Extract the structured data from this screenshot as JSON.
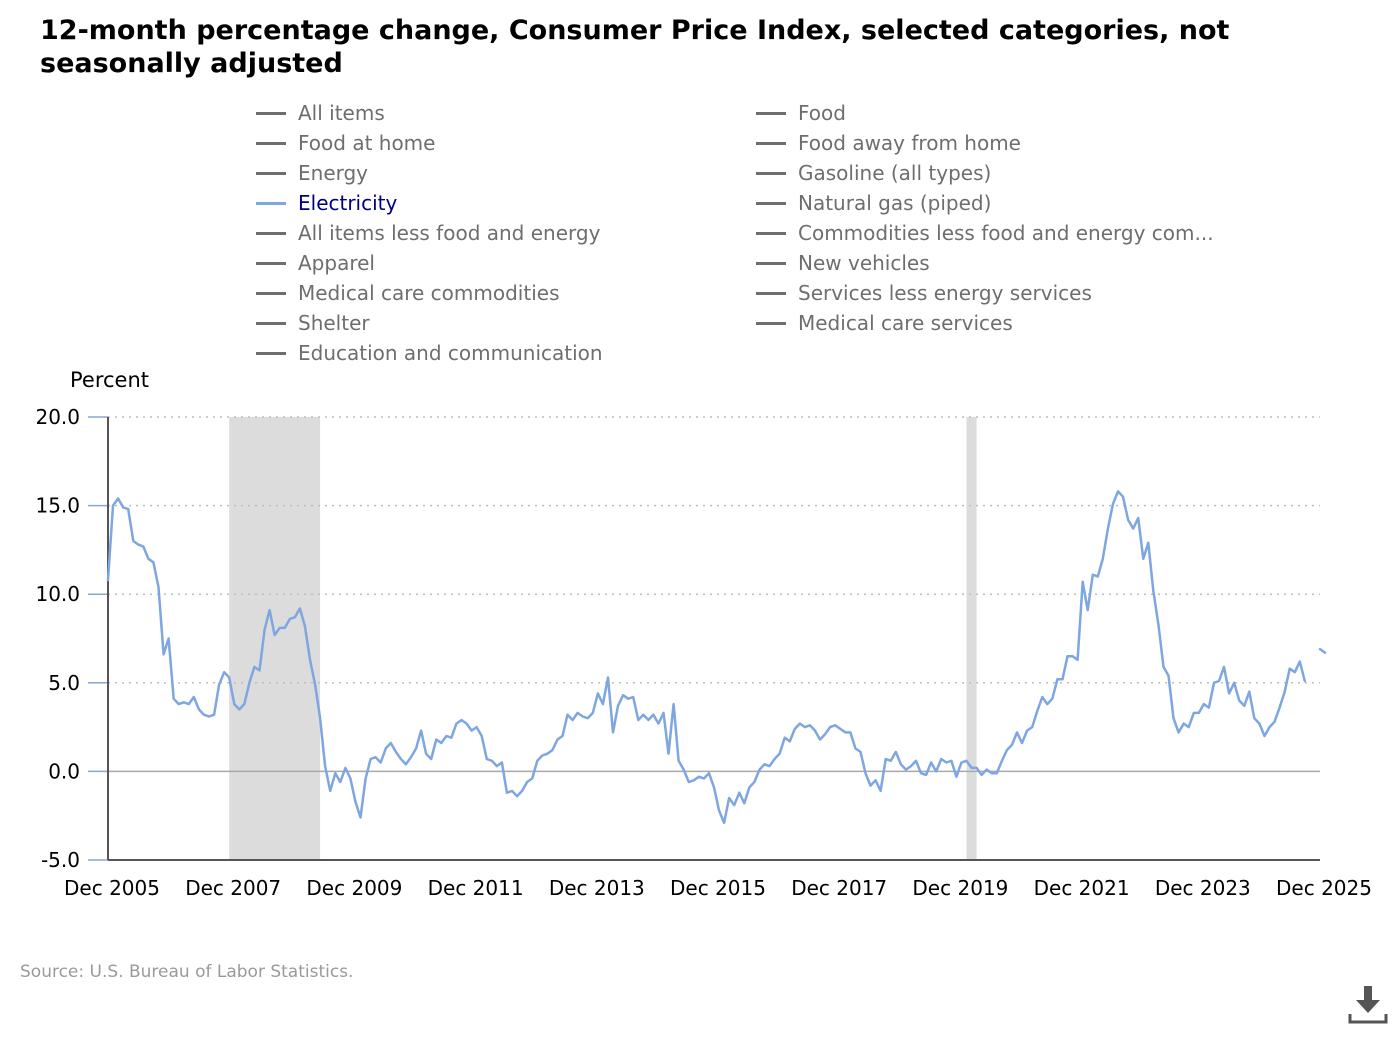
{
  "title": "12-month percentage change, Consumer Price Index, selected categories, not seasonally adjusted",
  "legend": [
    {
      "label": "All items",
      "active": false
    },
    {
      "label": "Food",
      "active": false
    },
    {
      "label": "Food at home",
      "active": false
    },
    {
      "label": "Food away from home",
      "active": false
    },
    {
      "label": "Energy",
      "active": false
    },
    {
      "label": "Gasoline (all types)",
      "active": false
    },
    {
      "label": "Electricity",
      "active": true
    },
    {
      "label": "Natural gas (piped)",
      "active": false
    },
    {
      "label": "All items less food and energy",
      "active": false
    },
    {
      "label": "Commodities less food and energy com...",
      "active": false
    },
    {
      "label": "Apparel",
      "active": false
    },
    {
      "label": "New vehicles",
      "active": false
    },
    {
      "label": "Medical care commodities",
      "active": false
    },
    {
      "label": "Services less energy services",
      "active": false
    },
    {
      "label": "Shelter",
      "active": false
    },
    {
      "label": "Medical care services",
      "active": false
    },
    {
      "label": "Education and communication",
      "active": false
    }
  ],
  "source": "Source: U.S. Bureau of Labor Statistics.",
  "colors": {
    "line": "#7ea6e0",
    "recession": "#dcdcdc",
    "grid": "#bdbdbd",
    "axis": "#555555",
    "inactive_legend": "#6e6e6e",
    "active_legend_text": "#000080"
  },
  "icons": {
    "download": "download-icon"
  },
  "chart_data": {
    "type": "line",
    "title": "12-month percentage change, Consumer Price Index, selected categories, not seasonally adjusted",
    "ylabel": "Percent",
    "xlabel": "",
    "ylim": [
      -5,
      20
    ],
    "yticks": [
      20,
      15,
      10,
      5,
      0,
      -5
    ],
    "ytick_labels": [
      "20.0",
      "15.0",
      "10.0",
      "5.0",
      "0.0",
      "-5.0"
    ],
    "x_start": "Dec 2005",
    "x_end": "Dec 2025",
    "xtick_labels": [
      "Dec 2005",
      "Dec 2007",
      "Dec 2009",
      "Dec 2011",
      "Dec 2013",
      "Dec 2015",
      "Dec 2017",
      "Dec 2019",
      "Dec 2021",
      "Dec 2023",
      "Dec 2025"
    ],
    "grid": true,
    "recessions": [
      {
        "start": "Dec 2007",
        "end": "Jun 2009"
      },
      {
        "start": "Feb 2020",
        "end": "Apr 2020"
      }
    ],
    "series": [
      {
        "name": "Electricity",
        "values": [
          10.8,
          15.0,
          15.4,
          14.9,
          14.8,
          13.0,
          12.8,
          12.7,
          12.0,
          11.8,
          10.4,
          6.6,
          7.5,
          4.1,
          3.8,
          3.9,
          3.8,
          4.2,
          3.5,
          3.2,
          3.1,
          3.2,
          4.9,
          5.6,
          5.3,
          3.8,
          3.5,
          3.8,
          5.0,
          5.9,
          5.7,
          8.0,
          9.1,
          7.7,
          8.1,
          8.1,
          8.6,
          8.7,
          9.2,
          8.2,
          6.3,
          4.9,
          3.0,
          0.3,
          -1.1,
          -0.1,
          -0.6,
          0.2,
          -0.4,
          -1.7,
          -2.6,
          -0.4,
          0.7,
          0.8,
          0.5,
          1.3,
          1.6,
          1.1,
          0.7,
          0.4,
          0.8,
          1.3,
          2.3,
          1.0,
          0.7,
          1.8,
          1.6,
          2.0,
          1.9,
          2.7,
          2.9,
          2.7,
          2.3,
          2.5,
          2.0,
          0.7,
          0.6,
          0.3,
          0.5,
          -1.2,
          -1.1,
          -1.4,
          -1.1,
          -0.6,
          -0.4,
          0.6,
          0.9,
          1.0,
          1.2,
          1.8,
          2.0,
          3.2,
          2.9,
          3.3,
          3.1,
          3.0,
          3.3,
          4.4,
          3.8,
          5.3,
          2.2,
          3.7,
          4.3,
          4.1,
          4.2,
          2.9,
          3.2,
          2.9,
          3.2,
          2.7,
          3.3,
          1.0,
          3.8,
          0.6,
          0.1,
          -0.6,
          -0.5,
          -0.3,
          -0.4,
          -0.1,
          -0.9,
          -2.2,
          -2.9,
          -1.5,
          -1.9,
          -1.2,
          -1.8,
          -0.9,
          -0.6,
          0.1,
          0.4,
          0.3,
          0.7,
          1.0,
          1.9,
          1.7,
          2.4,
          2.7,
          2.5,
          2.6,
          2.3,
          1.8,
          2.1,
          2.5,
          2.6,
          2.4,
          2.2,
          2.2,
          1.3,
          1.1,
          -0.1,
          -0.8,
          -0.5,
          -1.1,
          0.7,
          0.6,
          1.1,
          0.4,
          0.1,
          0.3,
          0.6,
          -0.1,
          -0.2,
          0.5,
          0.0,
          0.7,
          0.5,
          0.6,
          -0.3,
          0.5,
          0.6,
          0.2,
          0.2,
          -0.2,
          0.1,
          -0.1,
          -0.1,
          0.6,
          1.2,
          1.5,
          2.2,
          1.6,
          2.3,
          2.5,
          3.4,
          4.2,
          3.8,
          4.1,
          5.2,
          5.2,
          6.5,
          6.5,
          6.3,
          10.7,
          9.1,
          11.1,
          11.0,
          12.0,
          13.7,
          15.1,
          15.8,
          15.5,
          14.2,
          13.7,
          14.3,
          12.0,
          12.9,
          10.2,
          8.3,
          5.9,
          5.4,
          3.0,
          2.2,
          2.7,
          2.5,
          3.3,
          3.3,
          3.8,
          3.6,
          5.0,
          5.1,
          5.9,
          4.4,
          5.0,
          4.0,
          3.7,
          4.5,
          3.0,
          2.7,
          2.0,
          2.5,
          2.8,
          3.6,
          4.5,
          5.8,
          5.6,
          6.2,
          5.1,
          null,
          null,
          6.9,
          6.7
        ]
      }
    ]
  }
}
